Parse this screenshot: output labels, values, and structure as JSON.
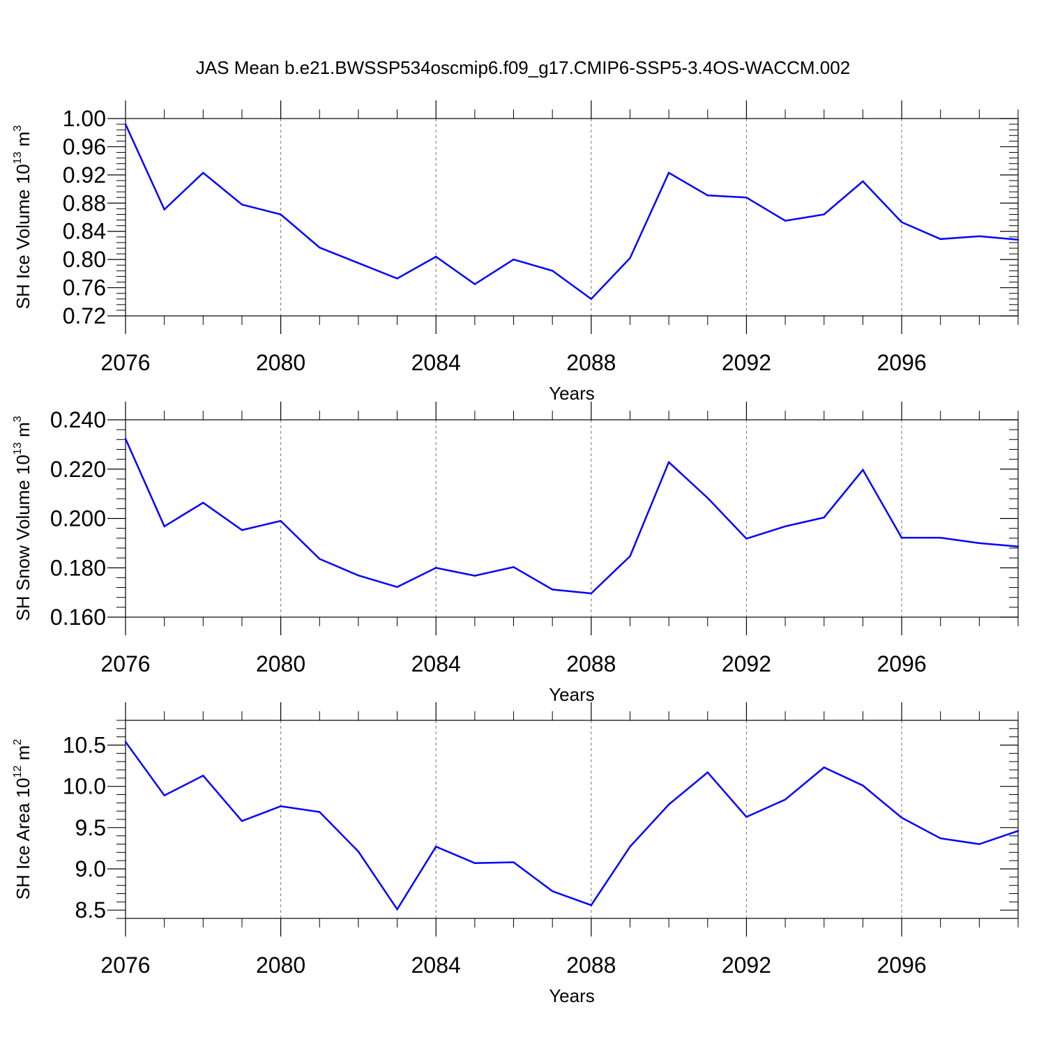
{
  "title": "JAS Mean b.e21.BWSSP534oscmip6.f09_g17.CMIP6-SSP5-3.4OS-WACCM.002",
  "line_color": "#0000ff",
  "chart_data": [
    {
      "type": "line",
      "ylabel": "SH Ice Volume 10",
      "ylabel_exp": "13",
      "ylabel_unit": " m",
      "ylabel_unit_exp": "3",
      "xlabel": "Years",
      "xlim": [
        2076,
        2099
      ],
      "ylim": [
        0.72,
        1.0
      ],
      "yticks": [
        0.72,
        0.76,
        0.8,
        0.84,
        0.88,
        0.92,
        0.96,
        1.0
      ],
      "ytick_labels": [
        "0.72",
        "0.76",
        "0.80",
        "0.84",
        "0.88",
        "0.92",
        "0.96",
        "1.00"
      ],
      "xticks": [
        2076,
        2080,
        2084,
        2088,
        2092,
        2096
      ],
      "xtick_labels": [
        "2076",
        "2080",
        "2084",
        "2088",
        "2092",
        "2096"
      ],
      "x": [
        2076,
        2077,
        2078,
        2079,
        2080,
        2081,
        2082,
        2083,
        2084,
        2085,
        2086,
        2087,
        2088,
        2089,
        2090,
        2091,
        2092,
        2093,
        2094,
        2095,
        2096,
        2097,
        2098,
        2099
      ],
      "values": [
        0.992,
        0.871,
        0.923,
        0.878,
        0.864,
        0.817,
        0.795,
        0.773,
        0.804,
        0.765,
        0.8,
        0.784,
        0.744,
        0.802,
        0.923,
        0.891,
        0.888,
        0.855,
        0.864,
        0.911,
        0.853,
        0.829,
        0.833,
        0.828
      ]
    },
    {
      "type": "line",
      "ylabel": "SH Snow Volume 10",
      "ylabel_exp": "13",
      "ylabel_unit": " m",
      "ylabel_unit_exp": "3",
      "xlabel": "Years",
      "xlim": [
        2076,
        2099
      ],
      "ylim": [
        0.16,
        0.24
      ],
      "yticks": [
        0.16,
        0.18,
        0.2,
        0.22,
        0.24
      ],
      "ytick_labels": [
        "0.160",
        "0.180",
        "0.200",
        "0.220",
        "0.240"
      ],
      "xticks": [
        2076,
        2080,
        2084,
        2088,
        2092,
        2096
      ],
      "xtick_labels": [
        "2076",
        "2080",
        "2084",
        "2088",
        "2092",
        "2096"
      ],
      "x": [
        2076,
        2077,
        2078,
        2079,
        2080,
        2081,
        2082,
        2083,
        2084,
        2085,
        2086,
        2087,
        2088,
        2089,
        2090,
        2091,
        2092,
        2093,
        2094,
        2095,
        2096,
        2097,
        2098,
        2099
      ],
      "values": [
        0.2323,
        0.1968,
        0.2064,
        0.1953,
        0.199,
        0.1836,
        0.1769,
        0.1722,
        0.18,
        0.1768,
        0.1803,
        0.1712,
        0.1696,
        0.1847,
        0.2228,
        0.2083,
        0.1918,
        0.1968,
        0.2004,
        0.2197,
        0.1922,
        0.1922,
        0.19,
        0.1886
      ]
    },
    {
      "type": "line",
      "ylabel": "SH Ice Area 10",
      "ylabel_exp": "12",
      "ylabel_unit": " m",
      "ylabel_unit_exp": "2",
      "xlabel": "Years",
      "xlim": [
        2076,
        2099
      ],
      "ylim": [
        8.4,
        10.8
      ],
      "yticks": [
        8.5,
        9.0,
        9.5,
        10.0,
        10.5
      ],
      "ytick_labels": [
        "8.5",
        "9.0",
        "9.5",
        "10.0",
        "10.5"
      ],
      "xticks": [
        2076,
        2080,
        2084,
        2088,
        2092,
        2096
      ],
      "xtick_labels": [
        "2076",
        "2080",
        "2084",
        "2088",
        "2092",
        "2096"
      ],
      "x": [
        2076,
        2077,
        2078,
        2079,
        2080,
        2081,
        2082,
        2083,
        2084,
        2085,
        2086,
        2087,
        2088,
        2089,
        2090,
        2091,
        2092,
        2093,
        2094,
        2095,
        2096,
        2097,
        2098,
        2099
      ],
      "values": [
        10.54,
        9.89,
        10.13,
        9.58,
        9.76,
        9.69,
        9.21,
        8.51,
        9.27,
        9.07,
        9.08,
        8.73,
        8.56,
        9.27,
        9.78,
        10.17,
        9.63,
        9.84,
        10.23,
        10.01,
        9.62,
        9.37,
        9.3,
        9.46
      ]
    }
  ]
}
